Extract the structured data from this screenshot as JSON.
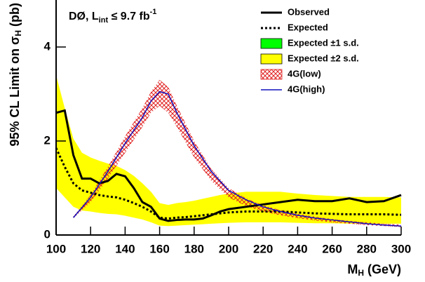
{
  "chart_data": {
    "type": "line",
    "annotation": {
      "text": "DØ, L",
      "sub": "int",
      "rest": " ≤ 9.7 fb",
      "sup": "-1"
    },
    "x_label": {
      "text": "M",
      "sub": "H",
      "rest": " (GeV)"
    },
    "y_label": {
      "text": "95% CL Limit on σ",
      "sub": "H",
      "rest": " (pb)"
    },
    "xlim": [
      100,
      300
    ],
    "ylim": [
      0,
      5
    ],
    "xticks": [
      100,
      120,
      140,
      160,
      180,
      200,
      220,
      240,
      260,
      280,
      300
    ],
    "yticks": [
      0,
      2,
      4
    ],
    "legend": "upper right",
    "series": [
      {
        "name": "Observed",
        "kind": "line",
        "color": "#000000",
        "dashed": false,
        "x": [
          100,
          105,
          110,
          115,
          120,
          125,
          130,
          135,
          140,
          145,
          150,
          155,
          160,
          165,
          170,
          175,
          180,
          185,
          190,
          195,
          200,
          210,
          220,
          230,
          240,
          250,
          260,
          270,
          280,
          290,
          300
        ],
        "values": [
          2.6,
          2.65,
          1.7,
          1.2,
          1.2,
          1.1,
          1.15,
          1.3,
          1.25,
          1.0,
          0.7,
          0.6,
          0.35,
          0.3,
          0.32,
          0.33,
          0.33,
          0.35,
          0.42,
          0.5,
          0.55,
          0.6,
          0.65,
          0.7,
          0.75,
          0.72,
          0.72,
          0.78,
          0.7,
          0.72,
          0.85
        ]
      },
      {
        "name": "Expected",
        "kind": "line",
        "color": "#000000",
        "dashed": true,
        "x": [
          100,
          105,
          110,
          115,
          120,
          125,
          130,
          135,
          140,
          145,
          150,
          155,
          160,
          165,
          170,
          175,
          180,
          185,
          190,
          195,
          200,
          210,
          220,
          230,
          240,
          250,
          260,
          270,
          280,
          290,
          300
        ],
        "values": [
          1.85,
          1.45,
          1.1,
          0.95,
          0.9,
          0.85,
          0.82,
          0.8,
          0.75,
          0.68,
          0.6,
          0.5,
          0.37,
          0.35,
          0.37,
          0.38,
          0.4,
          0.42,
          0.44,
          0.46,
          0.48,
          0.5,
          0.5,
          0.5,
          0.48,
          0.46,
          0.45,
          0.44,
          0.44,
          0.44,
          0.43
        ]
      },
      {
        "name": "Expected ±1 s.d.",
        "kind": "band",
        "color": "#00ff00",
        "hatch": false,
        "x": [
          100,
          105,
          110,
          115,
          120,
          125,
          130,
          135,
          140,
          145,
          150,
          155,
          160,
          165,
          170,
          175,
          180,
          185,
          190,
          195,
          200,
          210,
          220,
          230,
          240,
          250,
          260,
          270,
          280,
          290,
          300
        ],
        "lower": [
          1.35,
          1.05,
          0.8,
          0.7,
          0.65,
          0.62,
          0.6,
          0.58,
          0.55,
          0.5,
          0.44,
          0.37,
          0.27,
          0.26,
          0.27,
          0.28,
          0.29,
          0.31,
          0.32,
          0.33,
          0.35,
          0.36,
          0.36,
          0.36,
          0.35,
          0.33,
          0.33,
          0.32,
          0.32,
          0.32,
          0.31
        ],
        "upper": [
          2.5,
          2.0,
          1.5,
          1.3,
          1.25,
          1.18,
          1.13,
          1.1,
          1.03,
          0.94,
          0.83,
          0.69,
          0.51,
          0.48,
          0.51,
          0.53,
          0.55,
          0.58,
          0.61,
          0.64,
          0.66,
          0.69,
          0.69,
          0.69,
          0.66,
          0.64,
          0.62,
          0.61,
          0.61,
          0.61,
          0.6
        ]
      },
      {
        "name": "Expected ±2 s.d.",
        "kind": "band",
        "color": "#ffff00",
        "hatch": false,
        "x": [
          100,
          105,
          110,
          115,
          120,
          125,
          130,
          135,
          140,
          145,
          150,
          155,
          160,
          165,
          170,
          175,
          180,
          185,
          190,
          195,
          200,
          210,
          220,
          230,
          240,
          250,
          260,
          270,
          280,
          290,
          300
        ],
        "lower": [
          1.0,
          0.8,
          0.6,
          0.52,
          0.5,
          0.47,
          0.45,
          0.44,
          0.41,
          0.37,
          0.33,
          0.27,
          0.2,
          0.19,
          0.2,
          0.21,
          0.22,
          0.23,
          0.24,
          0.25,
          0.26,
          0.27,
          0.27,
          0.27,
          0.26,
          0.25,
          0.25,
          0.24,
          0.24,
          0.24,
          0.24
        ],
        "upper": [
          3.4,
          2.7,
          2.05,
          1.75,
          1.65,
          1.58,
          1.52,
          1.47,
          1.38,
          1.26,
          1.1,
          0.92,
          0.68,
          0.64,
          0.68,
          0.7,
          0.73,
          0.77,
          0.81,
          0.85,
          0.88,
          0.92,
          0.92,
          0.92,
          0.88,
          0.85,
          0.83,
          0.81,
          0.81,
          0.81,
          0.8
        ]
      },
      {
        "name": "4G(low)",
        "kind": "band",
        "color": "#e02020",
        "hatch": true,
        "x": [
          110,
          120,
          130,
          140,
          150,
          155,
          160,
          165,
          170,
          180,
          190,
          200,
          210,
          220,
          230,
          240,
          250,
          260,
          270,
          280,
          290,
          300
        ],
        "lower": [
          0.35,
          0.7,
          1.2,
          1.75,
          2.3,
          2.6,
          2.75,
          2.6,
          2.3,
          1.65,
          1.15,
          0.8,
          0.62,
          0.5,
          0.42,
          0.36,
          0.31,
          0.27,
          0.24,
          0.21,
          0.19,
          0.17
        ],
        "upper": [
          0.4,
          0.85,
          1.45,
          2.1,
          2.7,
          3.05,
          3.3,
          3.15,
          2.75,
          2.0,
          1.4,
          1.0,
          0.78,
          0.63,
          0.53,
          0.45,
          0.39,
          0.34,
          0.3,
          0.27,
          0.24,
          0.22
        ]
      },
      {
        "name": "4G(high)",
        "kind": "line",
        "color": "#1010c0",
        "dashed": false,
        "x": [
          110,
          120,
          130,
          140,
          150,
          155,
          160,
          165,
          170,
          180,
          190,
          200,
          210,
          220,
          230,
          240,
          250,
          260,
          270,
          280,
          290,
          300
        ],
        "values": [
          0.37,
          0.8,
          1.35,
          1.95,
          2.5,
          2.85,
          3.05,
          3.0,
          2.6,
          1.9,
          1.35,
          0.95,
          0.75,
          0.6,
          0.5,
          0.42,
          0.36,
          0.32,
          0.28,
          0.24,
          0.21,
          0.19
        ]
      }
    ]
  }
}
